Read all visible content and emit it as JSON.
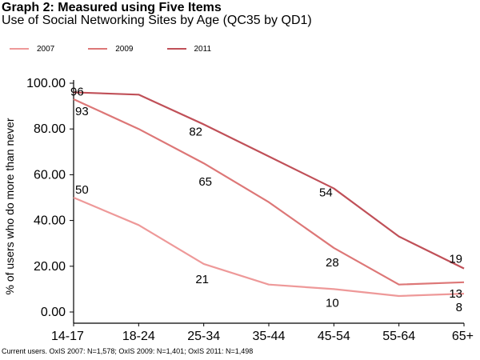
{
  "chart_data": {
    "type": "line",
    "title": "Graph 2: Measured using Five Items",
    "subtitle": "Use of Social Networking Sites by Age (QC35 by QD1)",
    "ylabel": "% of users who do more than never",
    "xlabel": "",
    "categories": [
      "14-17",
      "18-24",
      "25-34",
      "35-44",
      "45-54",
      "55-64",
      "65+"
    ],
    "ylim": [
      0,
      100
    ],
    "yticks": [
      "0.00",
      "20.00",
      "40.00",
      "60.00",
      "80.00",
      "100.00"
    ],
    "grid": false,
    "legend_position": "top-left",
    "series": [
      {
        "name": "2007",
        "color": "#ee9999",
        "values": [
          50,
          38,
          21,
          12,
          10,
          7,
          8
        ]
      },
      {
        "name": "2009",
        "color": "#dd7777",
        "values": [
          93,
          80,
          65,
          48,
          28,
          12,
          13
        ]
      },
      {
        "name": "2011",
        "color": "#c05058",
        "values": [
          96,
          95,
          82,
          68,
          54,
          33,
          19
        ]
      }
    ],
    "data_labels": [
      {
        "series": 2,
        "index": 0,
        "text": "96"
      },
      {
        "series": 1,
        "index": 0,
        "text": "93"
      },
      {
        "series": 2,
        "index": 2,
        "text": "82"
      },
      {
        "series": 1,
        "index": 2,
        "text": "65"
      },
      {
        "series": 2,
        "index": 4,
        "text": "54"
      },
      {
        "series": 0,
        "index": 0,
        "text": "50"
      },
      {
        "series": 1,
        "index": 4,
        "text": "28"
      },
      {
        "series": 0,
        "index": 2,
        "text": "21"
      },
      {
        "series": 0,
        "index": 4,
        "text": "10"
      },
      {
        "series": 2,
        "index": 6,
        "text": "19"
      },
      {
        "series": 1,
        "index": 6,
        "text": "13"
      },
      {
        "series": 0,
        "index": 6,
        "text": "8"
      }
    ],
    "footnote": "Current users. OxIS 2007: N=1,578; OxIS 2009: N=1,401; OxIS 2011: N=1,498"
  }
}
